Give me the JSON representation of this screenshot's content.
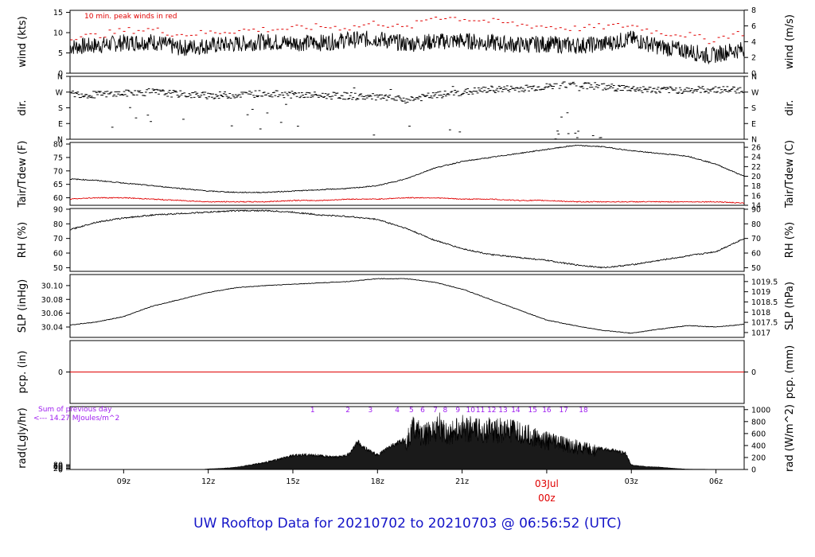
{
  "title": "UW Rooftop Data for 20210702  to  20210703 @ 06:56:52  (UTC)",
  "colors": {
    "accent_red": "#e00000",
    "purple": "#a020f0",
    "title_blue": "#1515c8",
    "trace": "#000000"
  },
  "x_axis": {
    "ticks": [
      "09z",
      "12z",
      "15z",
      "18z",
      "21z",
      "03Jul",
      "03z",
      "06z"
    ],
    "tick_hours": [
      9,
      12,
      15,
      18,
      21,
      24,
      27,
      30
    ],
    "date_label": "03Jul",
    "date_sublabel": "00z",
    "range_hours": [
      7.1,
      31.0
    ]
  },
  "chart_data": [
    {
      "type": "line",
      "panel": "wind",
      "ylabel_left": "wind (kts)",
      "ylabel_right": "wind (m/s)",
      "annotation": "10 min. peak winds in red",
      "left_ticks": [
        "0",
        "5",
        "10",
        "15"
      ],
      "right_ticks": [
        "0",
        "2",
        "4",
        "6",
        "8"
      ],
      "ylim": [
        0,
        15.5
      ],
      "series": [
        {
          "color": "#000000",
          "x": [
            7.1,
            8,
            9,
            10,
            11,
            12,
            13,
            14,
            15,
            16,
            17,
            18,
            19,
            20,
            21,
            22,
            23,
            24,
            25,
            26,
            27,
            28,
            29,
            29.8,
            30.5,
            31.0
          ],
          "values": [
            6.5,
            6.8,
            7.5,
            7.8,
            6.2,
            6.8,
            7.2,
            7.8,
            7.5,
            7.5,
            8.2,
            8.5,
            7.2,
            7.8,
            8.0,
            7.5,
            7.0,
            7.2,
            6.8,
            7.2,
            8.5,
            6.5,
            5.5,
            4.2,
            5.5,
            5.8
          ]
        },
        {
          "color": "#e00000",
          "x": [
            7.1,
            8,
            9,
            10,
            11,
            12,
            13,
            14,
            15,
            16,
            17,
            18,
            19,
            20,
            21,
            22,
            23,
            24,
            25,
            26,
            27,
            28,
            29,
            29.8,
            30.5,
            31.0
          ],
          "values": [
            9.0,
            9.2,
            10.5,
            10.8,
            9.5,
            10.0,
            10.5,
            10.8,
            11.0,
            11.5,
            11.2,
            12.5,
            11.0,
            14.0,
            13.5,
            12.8,
            12.0,
            11.5,
            11.0,
            11.5,
            11.8,
            10.0,
            9.5,
            8.0,
            9.5,
            10.0
          ]
        }
      ]
    },
    {
      "type": "scatter",
      "panel": "dir",
      "ylabel_left": "dir.",
      "ylabel_right": "dir.",
      "left_ticks": [
        "N",
        "W",
        "S",
        "E",
        "N"
      ],
      "right_ticks": [
        "N",
        "W",
        "S",
        "E",
        "N"
      ],
      "ylim": [
        0,
        360
      ],
      "series": [
        {
          "color": "#000000",
          "x": [
            7.1,
            8,
            9,
            10,
            11,
            12,
            13,
            14,
            15,
            16,
            17,
            18,
            19,
            20,
            21,
            22,
            23,
            24,
            25,
            26,
            27,
            28,
            29,
            30,
            31.0
          ],
          "values": [
            260,
            255,
            262,
            270,
            258,
            250,
            255,
            262,
            255,
            250,
            248,
            240,
            225,
            250,
            268,
            285,
            290,
            300,
            315,
            300,
            290,
            280,
            282,
            285,
            282
          ]
        }
      ]
    },
    {
      "type": "line",
      "panel": "temperature",
      "ylabel_left": "Tair/Tdew (F)",
      "ylabel_right": "Tair/Tdew (C)",
      "left_ticks": [
        "60",
        "65",
        "70",
        "75",
        "80"
      ],
      "right_ticks": [
        "14",
        "16",
        "18",
        "20",
        "22",
        "24",
        "26"
      ],
      "ylim": [
        57.2,
        80.6
      ],
      "series": [
        {
          "color": "#000000",
          "x": [
            7.1,
            8,
            9,
            10,
            11,
            12,
            13,
            14,
            15,
            16,
            17,
            18,
            19,
            20,
            21,
            22,
            23,
            24,
            25,
            26,
            27,
            28,
            29,
            30,
            31.0
          ],
          "values": [
            67.0,
            66.5,
            65.5,
            64.5,
            63.5,
            62.5,
            62.0,
            62.0,
            62.5,
            63.0,
            63.5,
            64.5,
            67.0,
            71.0,
            73.5,
            75.0,
            76.5,
            78.0,
            79.5,
            79.0,
            77.5,
            76.5,
            75.5,
            72.5,
            68.0
          ]
        },
        {
          "color": "#e00000",
          "x": [
            7.1,
            8,
            9,
            10,
            11,
            12,
            13,
            14,
            15,
            16,
            17,
            18,
            19,
            20,
            21,
            22,
            23,
            24,
            25,
            26,
            27,
            28,
            29,
            30,
            31.0
          ],
          "values": [
            59.5,
            60.0,
            60.0,
            59.5,
            59.0,
            58.5,
            58.5,
            58.5,
            59.0,
            59.0,
            59.5,
            59.5,
            60.0,
            60.0,
            59.5,
            59.5,
            59.0,
            59.0,
            58.5,
            58.5,
            58.5,
            58.5,
            58.5,
            58.5,
            58.0
          ]
        }
      ]
    },
    {
      "type": "line",
      "panel": "rh",
      "ylabel_left": "RH (%)",
      "ylabel_right": "RH (%)",
      "left_ticks": [
        "50",
        "60",
        "70",
        "80",
        "90"
      ],
      "right_ticks": [
        "50",
        "60",
        "70",
        "80",
        "90"
      ],
      "ylim": [
        47.5,
        90.5
      ],
      "series": [
        {
          "color": "#000000",
          "x": [
            7.1,
            8,
            9,
            10,
            11,
            12,
            13,
            14,
            15,
            16,
            17,
            18,
            19,
            20,
            21,
            22,
            23,
            24,
            25,
            26,
            27,
            28,
            29,
            30,
            31.0
          ],
          "values": [
            76,
            81,
            84,
            86,
            87,
            88,
            89,
            89,
            88,
            86,
            85,
            83,
            77,
            69,
            63,
            59,
            57,
            55,
            52,
            50,
            52,
            55,
            58,
            61,
            70
          ]
        }
      ]
    },
    {
      "type": "line",
      "panel": "pressure",
      "ylabel_left": "SLP (inHg)",
      "ylabel_right": "SLP (hPa)",
      "left_ticks": [
        "30.04",
        "30.06",
        "30.08",
        "30.10"
      ],
      "right_ticks": [
        "1017",
        "1017.5",
        "1018",
        "1018.5",
        "1019",
        "1019.5"
      ],
      "ylim": [
        30.025,
        30.116
      ],
      "series": [
        {
          "color": "#000000",
          "x": [
            7.1,
            8,
            9,
            10,
            11,
            12,
            13,
            14,
            15,
            16,
            17,
            18,
            19,
            20,
            21,
            22,
            23,
            24,
            25,
            26,
            27,
            28,
            29,
            30,
            31.0
          ],
          "values": [
            30.043,
            30.047,
            30.055,
            30.07,
            30.08,
            30.09,
            30.097,
            30.1,
            30.102,
            30.104,
            30.106,
            30.11,
            30.11,
            30.105,
            30.095,
            30.08,
            30.065,
            30.05,
            30.042,
            30.035,
            30.031,
            30.037,
            30.042,
            30.04,
            30.044
          ]
        }
      ]
    },
    {
      "type": "line",
      "panel": "precip",
      "ylabel_left": "pcp. (in)",
      "ylabel_right": "pcp. (mm)",
      "left_ticks": [
        "0"
      ],
      "right_ticks": [
        "0"
      ],
      "ylim": [
        -1,
        1
      ],
      "series": [
        {
          "color": "#e00000",
          "x": [
            7.1,
            31.0
          ],
          "values": [
            0,
            0
          ]
        }
      ]
    },
    {
      "type": "area",
      "panel": "radiation",
      "ylabel_left": "rad(Lgly/hr)",
      "ylabel_right": "rad (W/m^2)",
      "left_ticks": [
        "0",
        "20",
        "40",
        "60",
        "80"
      ],
      "right_ticks": [
        "0",
        "200",
        "400",
        "600",
        "800",
        "1000"
      ],
      "ylim": [
        0,
        1050
      ],
      "annotations": [
        "Sum of previous day",
        "<--- 14.27 MJoules/m^2"
      ],
      "hour_marks": [
        "1",
        "2",
        "3",
        "4",
        "5",
        "6",
        "7",
        "8",
        "9",
        "10",
        "11",
        "12",
        "13",
        "14",
        "15",
        "16",
        "17",
        "18"
      ],
      "hour_mark_x": [
        15.7,
        16.95,
        17.75,
        18.7,
        19.2,
        19.6,
        20.05,
        20.4,
        20.85,
        21.3,
        21.65,
        22.05,
        22.45,
        22.9,
        23.5,
        24.0,
        24.6,
        25.3
      ],
      "series": [
        {
          "color": "#000000",
          "x": [
            11.8,
            12,
            12.5,
            13,
            13.5,
            14,
            14.5,
            15,
            15.5,
            16,
            16.5,
            17,
            17.3,
            17.6,
            18,
            18.5,
            19,
            19.3,
            19.6,
            19.9,
            20.2,
            20.5,
            21,
            21.5,
            22,
            22.5,
            23,
            23.5,
            24,
            24.5,
            25,
            25.5,
            26,
            26.5,
            26.8,
            27,
            27.5,
            28,
            28.5,
            29,
            31.0
          ],
          "values": [
            0,
            10,
            20,
            40,
            80,
            120,
            180,
            240,
            260,
            240,
            210,
            270,
            480,
            360,
            250,
            420,
            520,
            900,
            650,
            800,
            880,
            700,
            860,
            780,
            800,
            780,
            740,
            660,
            580,
            520,
            460,
            400,
            360,
            320,
            280,
            80,
            50,
            40,
            20,
            5,
            0
          ]
        }
      ]
    }
  ]
}
